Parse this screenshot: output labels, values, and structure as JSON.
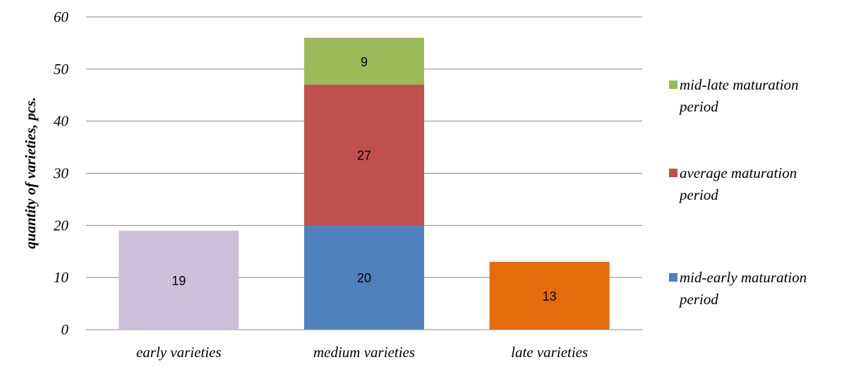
{
  "chart_data": {
    "type": "bar",
    "stacked": true,
    "title": "",
    "xlabel": "",
    "ylabel": "quantity of varieties, pcs.",
    "ylim": [
      0,
      60
    ],
    "yticks": [
      "0",
      "10",
      "20",
      "30",
      "40",
      "50",
      "60"
    ],
    "grid": true,
    "categories": [
      "early varieties",
      "medium varieties",
      "late varieties"
    ],
    "bars": [
      {
        "category": "early varieties",
        "segments": [
          {
            "value": 19,
            "label": "19",
            "color": "#CCC1DA"
          }
        ]
      },
      {
        "category": "medium varieties",
        "segments": [
          {
            "value": 20,
            "label": "20",
            "color": "#4F81BD",
            "series": "mid-early maturation period"
          },
          {
            "value": 27,
            "label": "27",
            "color": "#C0504D",
            "series": "average maturation period"
          },
          {
            "value": 9,
            "label": "9",
            "color": "#9BBB59",
            "series": "mid-late maturation period"
          }
        ]
      },
      {
        "category": "late varieties",
        "segments": [
          {
            "value": 13,
            "label": "13",
            "color": "#E46C0A"
          }
        ]
      }
    ],
    "legend": {
      "placement": "right",
      "items": [
        {
          "lines": [
            "mid-late maturation",
            "period"
          ],
          "color": "#9BBB59"
        },
        {
          "lines": [
            "average maturation",
            "period"
          ],
          "color": "#C0504D"
        },
        {
          "lines": [
            "mid-early maturation",
            "period"
          ],
          "color": "#4F81BD"
        }
      ]
    }
  }
}
